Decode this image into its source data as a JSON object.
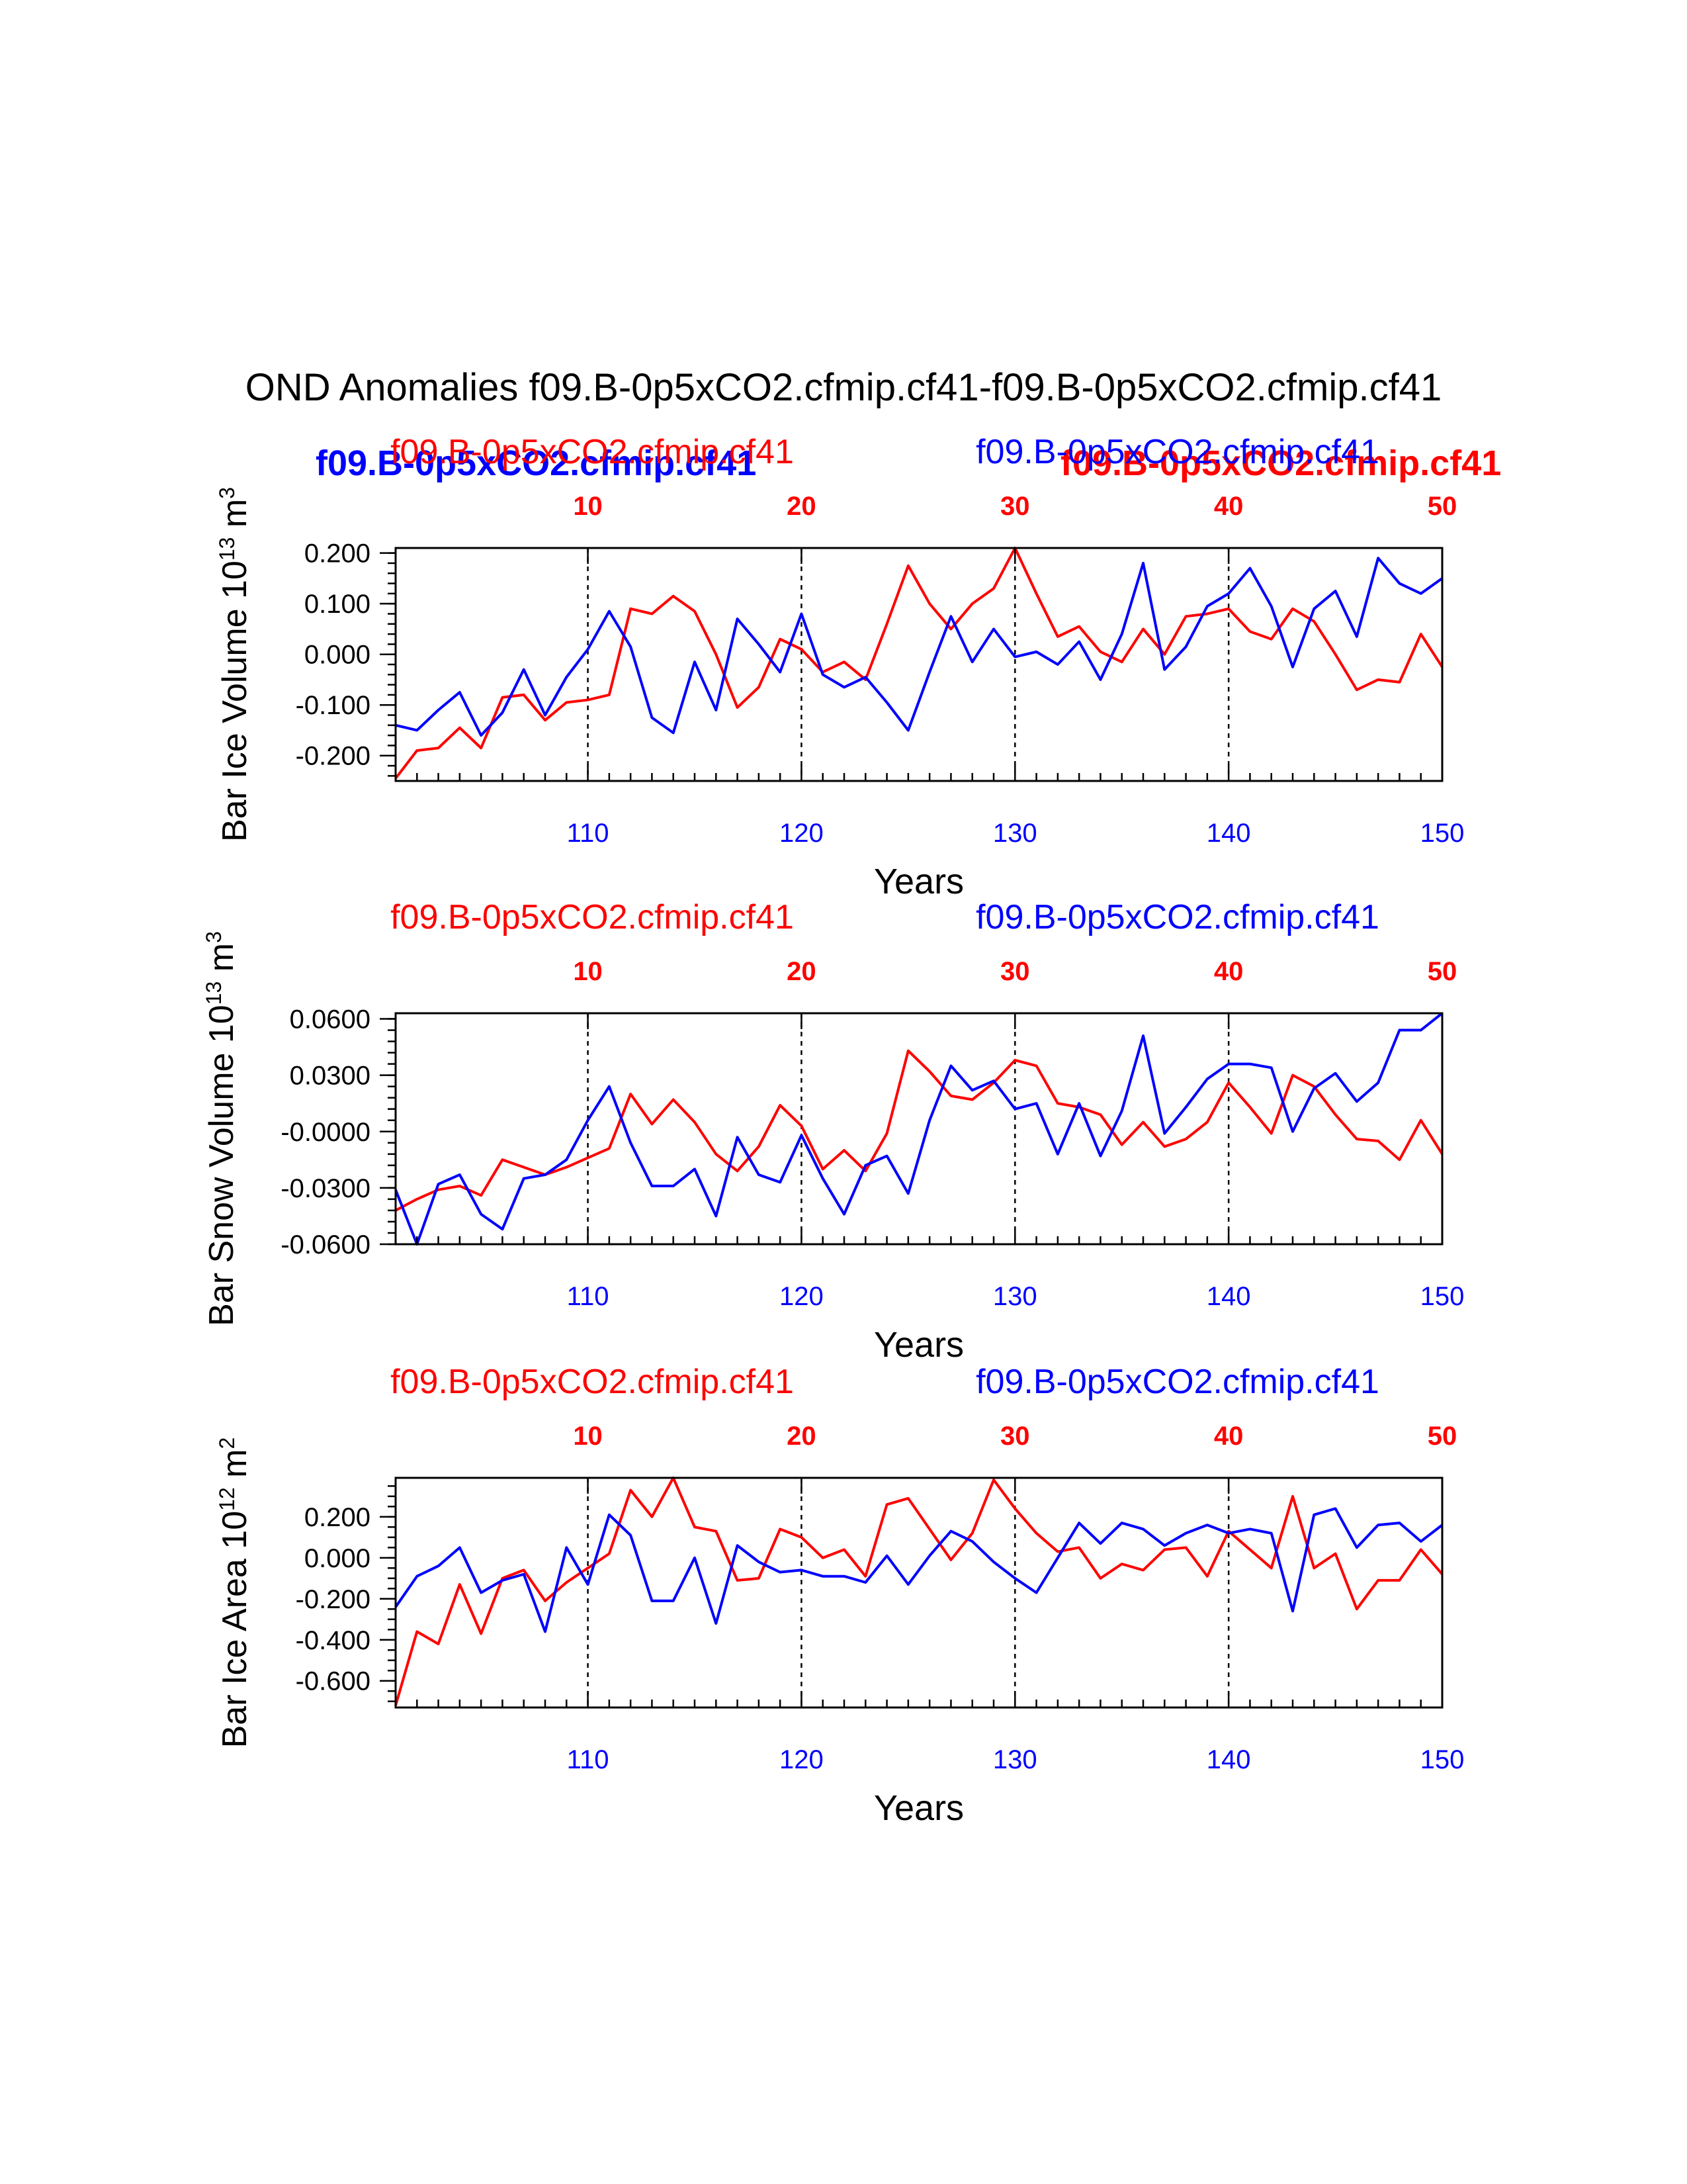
{
  "title": "OND Anomalies f09.B-0p5xCO2.cfmip.cf41-f09.B-0p5xCO2.cfmip.cf41",
  "colors": {
    "case1": "#ff0000",
    "case2": "#0000ff",
    "axis": "#000000"
  },
  "overlay_labels": {
    "left": "f09.B-0p5xCO2.cfmip.cf41",
    "right": "f09.B-0p5xCO2.cfmip.cf41"
  },
  "chart_data": [
    {
      "type": "line",
      "title": "",
      "ylabel": "Bar Ice Volume 10",
      "ylabel_sup": "13",
      "ylabel_unit": " m",
      "ylabel_unit_sup": "3",
      "xlabel": "Years",
      "ylim": [
        -0.25,
        0.21
      ],
      "yticks": [
        -0.2,
        -0.1,
        0.0,
        0.1,
        0.2
      ],
      "yticklabels": [
        "-0.200",
        "-0.100",
        "0.000",
        "0.100",
        "0.200"
      ],
      "yminor": 0.02,
      "xlim": [
        101,
        150
      ],
      "xticks": [
        110,
        120,
        130,
        140,
        150
      ],
      "xticklabels": [
        "110",
        "120",
        "130",
        "140",
        "150"
      ],
      "top_xticks": [
        10,
        20,
        30,
        40,
        50
      ],
      "top_xticklabels": [
        "10",
        "20",
        "30",
        "40",
        "50"
      ],
      "case1_label": "f09.B-0p5xCO2.cfmip.cf41",
      "case2_label": "f09.B-0p5xCO2.cfmip.cf41",
      "series": [
        {
          "name": "f09.B-0p5xCO2.cfmip.cf41 (red)",
          "color": "#ff0000",
          "x_start": 1,
          "values": [
            -0.245,
            -0.19,
            -0.185,
            -0.145,
            -0.185,
            -0.085,
            -0.08,
            -0.13,
            -0.095,
            -0.09,
            -0.08,
            0.09,
            0.08,
            0.115,
            0.085,
            0.0,
            -0.105,
            -0.065,
            0.03,
            0.01,
            -0.035,
            -0.015,
            -0.05,
            0.06,
            0.175,
            0.1,
            0.05,
            0.1,
            0.13,
            0.21,
            0.12,
            0.035,
            0.055,
            0.005,
            -0.015,
            0.05,
            0.0,
            0.075,
            0.08,
            0.09,
            0.045,
            0.03,
            0.09,
            0.065,
            0.0,
            -0.07,
            -0.05,
            -0.055,
            0.04,
            -0.025
          ]
        },
        {
          "name": "f09.B-0p5xCO2.cfmip.cf41 (blue)",
          "color": "#0000ff",
          "x_start": 101,
          "values": [
            -0.14,
            -0.15,
            -0.11,
            -0.075,
            -0.16,
            -0.115,
            -0.03,
            -0.12,
            -0.045,
            0.01,
            0.085,
            0.015,
            -0.125,
            -0.155,
            -0.015,
            -0.11,
            0.07,
            0.02,
            -0.035,
            0.08,
            -0.04,
            -0.065,
            -0.045,
            -0.095,
            -0.15,
            -0.035,
            0.075,
            -0.015,
            0.05,
            -0.005,
            0.005,
            -0.02,
            0.025,
            -0.05,
            0.04,
            0.18,
            -0.03,
            0.015,
            0.095,
            0.12,
            0.17,
            0.095,
            -0.025,
            0.09,
            0.125,
            0.035,
            0.19,
            0.14,
            0.12,
            0.15
          ]
        }
      ]
    },
    {
      "type": "line",
      "title": "",
      "ylabel": "Bar Snow Volume 10",
      "ylabel_sup": "13",
      "ylabel_unit": " m",
      "ylabel_unit_sup": "3",
      "xlabel": "Years",
      "ylim": [
        -0.06,
        0.063
      ],
      "yticks": [
        -0.06,
        -0.03,
        0.0,
        0.03,
        0.06
      ],
      "yticklabels": [
        "-0.0600",
        "-0.0300",
        "-0.0000",
        "0.0300",
        "0.0600"
      ],
      "yminor": 0.006,
      "xlim": [
        101,
        150
      ],
      "xticks": [
        110,
        120,
        130,
        140,
        150
      ],
      "xticklabels": [
        "110",
        "120",
        "130",
        "140",
        "150"
      ],
      "top_xticks": [
        10,
        20,
        30,
        40,
        50
      ],
      "top_xticklabels": [
        "10",
        "20",
        "30",
        "40",
        "50"
      ],
      "case1_label": "f09.B-0p5xCO2.cfmip.cf41",
      "case2_label": "f09.B-0p5xCO2.cfmip.cf41",
      "series": [
        {
          "name": "f09.B-0p5xCO2.cfmip.cf41 (red)",
          "color": "#ff0000",
          "x_start": 1,
          "values": [
            -0.042,
            -0.036,
            -0.031,
            -0.029,
            -0.034,
            -0.015,
            -0.019,
            -0.023,
            -0.019,
            -0.014,
            -0.009,
            0.02,
            0.004,
            0.017,
            0.005,
            -0.012,
            -0.021,
            -0.008,
            0.014,
            0.003,
            -0.02,
            -0.01,
            -0.021,
            -0.001,
            0.043,
            0.032,
            0.019,
            0.017,
            0.026,
            0.038,
            0.035,
            0.015,
            0.013,
            0.009,
            -0.007,
            0.005,
            -0.008,
            -0.004,
            0.005,
            0.026,
            0.013,
            -0.001,
            0.03,
            0.024,
            0.009,
            -0.004,
            -0.005,
            -0.015,
            0.006,
            -0.012
          ]
        },
        {
          "name": "f09.B-0p5xCO2.cfmip.cf41 (blue)",
          "color": "#0000ff",
          "x_start": 101,
          "values": [
            -0.031,
            -0.06,
            -0.028,
            -0.023,
            -0.044,
            -0.052,
            -0.025,
            -0.023,
            -0.015,
            0.006,
            0.024,
            -0.006,
            -0.029,
            -0.029,
            -0.02,
            -0.045,
            -0.003,
            -0.023,
            -0.027,
            -0.002,
            -0.025,
            -0.044,
            -0.018,
            -0.013,
            -0.033,
            0.006,
            0.035,
            0.022,
            0.027,
            0.012,
            0.015,
            -0.012,
            0.015,
            -0.013,
            0.011,
            0.051,
            -0.001,
            0.013,
            0.028,
            0.036,
            0.036,
            0.034,
            0.0,
            0.023,
            0.031,
            0.016,
            0.026,
            0.054,
            0.054,
            0.063
          ]
        }
      ]
    },
    {
      "type": "line",
      "title": "",
      "ylabel": "Bar Ice Area 10",
      "ylabel_sup": "12",
      "ylabel_unit": " m",
      "ylabel_unit_sup": "2",
      "xlabel": "Years",
      "ylim": [
        -0.73,
        0.39
      ],
      "yticks": [
        -0.6,
        -0.4,
        -0.2,
        0.0,
        0.2
      ],
      "yticklabels": [
        "-0.600",
        "-0.400",
        "-0.200",
        "0.000",
        "0.200"
      ],
      "yminor": 0.05,
      "xlim": [
        101,
        150
      ],
      "xticks": [
        110,
        120,
        130,
        140,
        150
      ],
      "xticklabels": [
        "110",
        "120",
        "130",
        "140",
        "150"
      ],
      "top_xticks": [
        10,
        20,
        30,
        40,
        50
      ],
      "top_xticklabels": [
        "10",
        "20",
        "30",
        "40",
        "50"
      ],
      "case1_label": "f09.B-0p5xCO2.cfmip.cf41",
      "case2_label": "f09.B-0p5xCO2.cfmip.cf41",
      "series": [
        {
          "name": "f09.B-0p5xCO2.cfmip.cf41 (red)",
          "color": "#ff0000",
          "x_start": 1,
          "values": [
            -0.72,
            -0.36,
            -0.42,
            -0.13,
            -0.37,
            -0.1,
            -0.06,
            -0.21,
            -0.12,
            -0.05,
            0.02,
            0.33,
            0.2,
            0.39,
            0.15,
            0.13,
            -0.11,
            -0.1,
            0.14,
            0.1,
            0.0,
            0.04,
            -0.09,
            0.26,
            0.29,
            0.14,
            -0.01,
            0.12,
            0.38,
            0.24,
            0.12,
            0.03,
            0.05,
            -0.1,
            -0.03,
            -0.06,
            0.04,
            0.05,
            -0.09,
            0.13,
            0.04,
            -0.05,
            0.3,
            -0.05,
            0.02,
            -0.25,
            -0.11,
            -0.11,
            0.04,
            -0.08
          ]
        },
        {
          "name": "f09.B-0p5xCO2.cfmip.cf41 (blue)",
          "color": "#0000ff",
          "x_start": 101,
          "values": [
            -0.24,
            -0.09,
            -0.04,
            0.05,
            -0.17,
            -0.11,
            -0.08,
            -0.36,
            0.05,
            -0.13,
            0.21,
            0.11,
            -0.21,
            -0.21,
            0.0,
            -0.32,
            0.06,
            -0.02,
            -0.07,
            -0.06,
            -0.09,
            -0.09,
            -0.12,
            0.01,
            -0.13,
            0.01,
            0.13,
            0.08,
            -0.02,
            -0.1,
            -0.17,
            0.0,
            0.17,
            0.07,
            0.17,
            0.14,
            0.06,
            0.12,
            0.16,
            0.12,
            0.14,
            0.12,
            -0.26,
            0.21,
            0.24,
            0.05,
            0.16,
            0.17,
            0.08,
            0.16
          ]
        }
      ]
    }
  ]
}
